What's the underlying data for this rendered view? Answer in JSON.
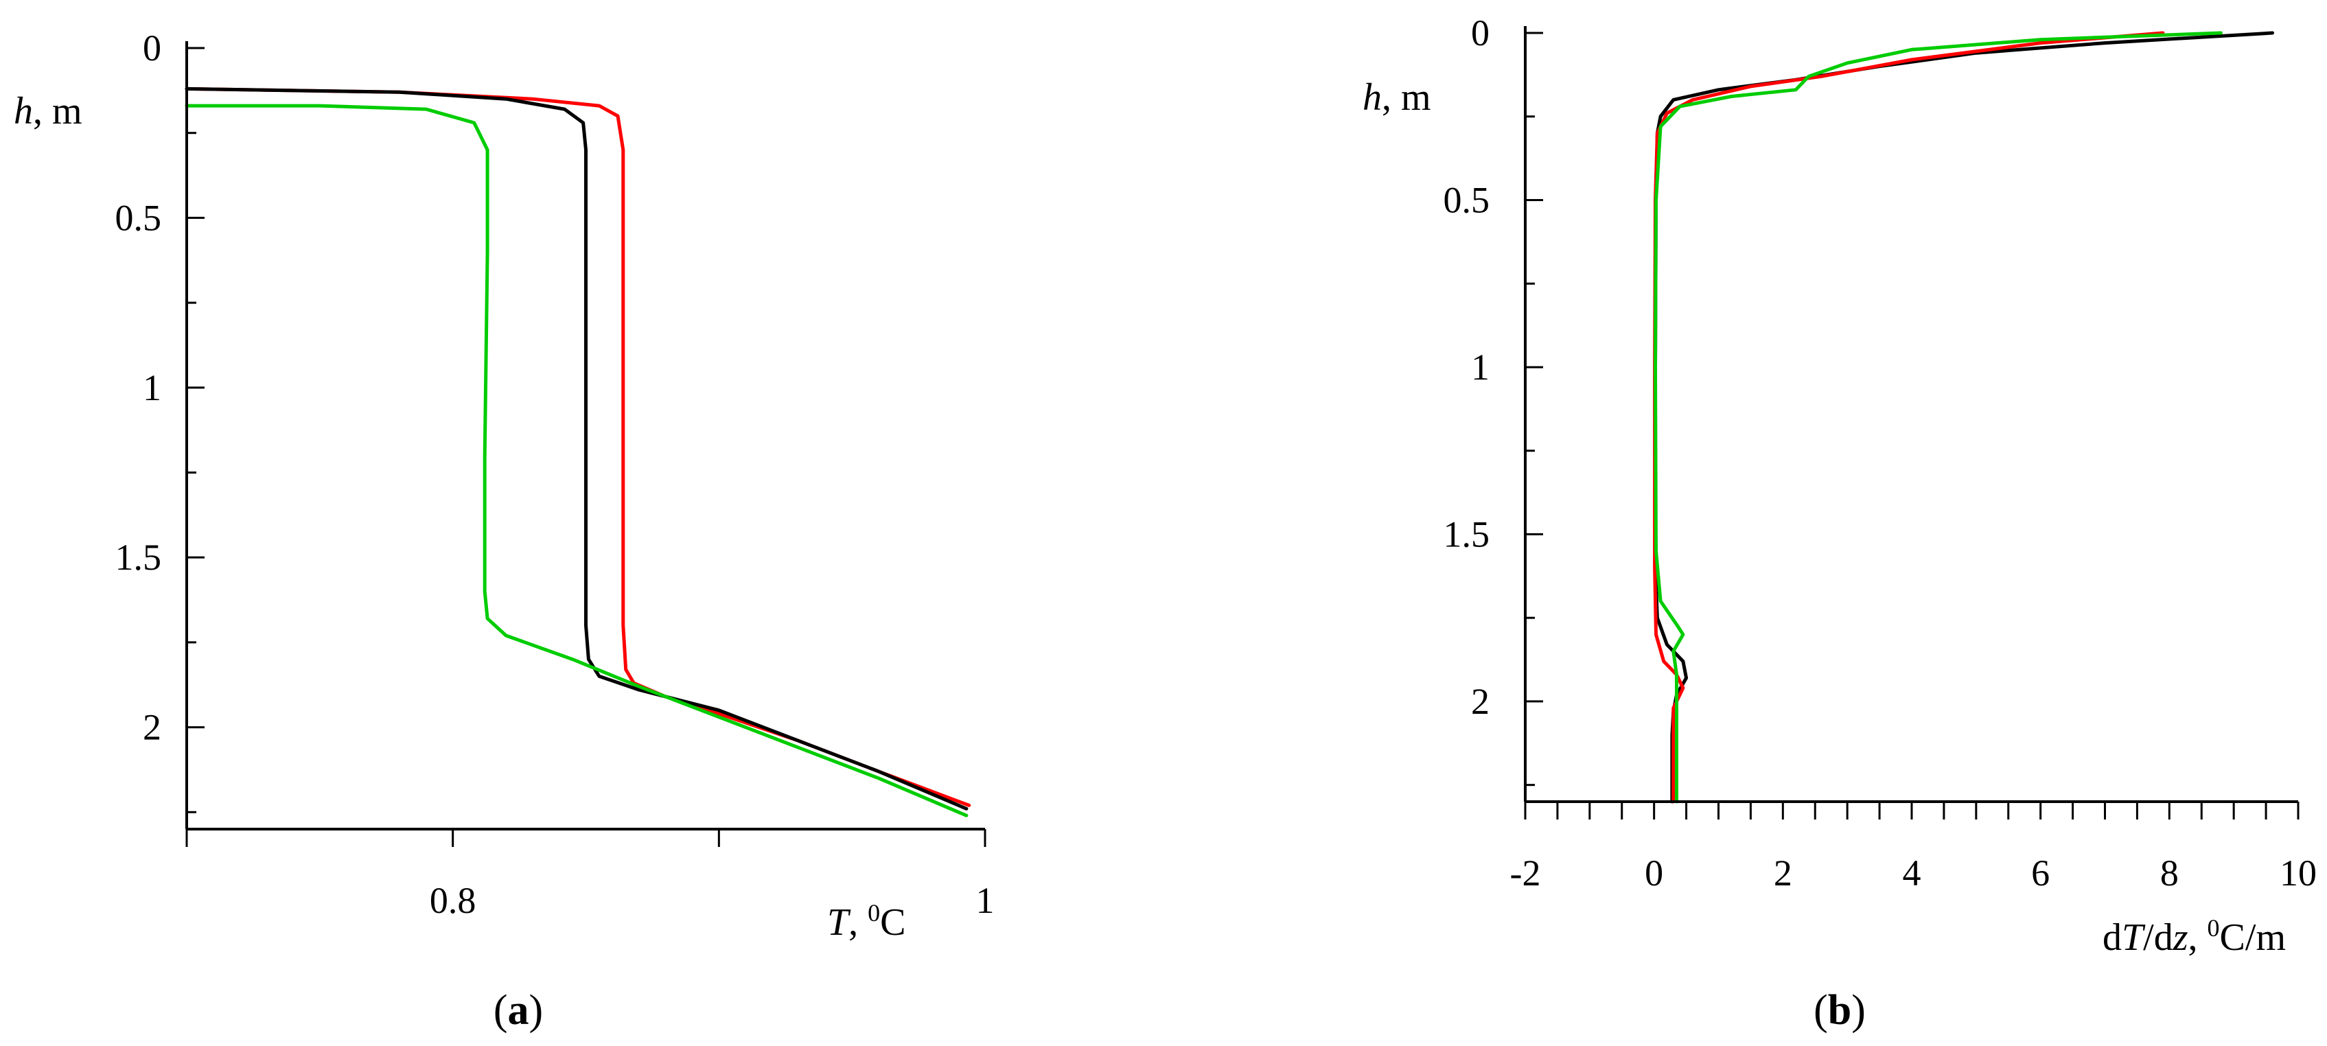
{
  "panels": [
    {
      "label_open": "(",
      "label_letter": "a",
      "label_close": ")",
      "ylabel_var": "h",
      "ylabel_unit": ", m",
      "xlabel_var": "T",
      "xlabel_sep": ", ",
      "xlabel_sup": "0",
      "xlabel_unit": "C"
    },
    {
      "label_open": "(",
      "label_letter": "b",
      "label_close": ")",
      "ylabel_var": "h",
      "ylabel_unit": ", m",
      "xlabel_pre": "d",
      "xlabel_var": "T",
      "xlabel_mid": "/d",
      "xlabel_var2": "z",
      "xlabel_sep": ", ",
      "xlabel_sup": "0",
      "xlabel_unit": "C/m"
    }
  ],
  "chart_data": [
    {
      "type": "line",
      "title": "",
      "xlabel": "T, 0C",
      "ylabel": "h, m",
      "xlim": [
        0.7,
        1.0
      ],
      "ylim": [
        2.3,
        0
      ],
      "y_inverted": true,
      "x_ticks_labeled": [
        "0.8",
        "1"
      ],
      "x_tick_values": [
        0.8,
        1.0
      ],
      "x_minor_ticks": [
        0.7,
        0.9
      ],
      "y_ticks_labeled": [
        "0",
        "0.5",
        "1",
        "1.5",
        "2"
      ],
      "y_tick_values": [
        0,
        0.5,
        1,
        1.5,
        2
      ],
      "grid": false,
      "legend": "none",
      "series": [
        {
          "color": "#ff0000",
          "points": [
            [
              0.7,
              0.12
            ],
            [
              0.78,
              0.13
            ],
            [
              0.83,
              0.15
            ],
            [
              0.855,
              0.17
            ],
            [
              0.862,
              0.2
            ],
            [
              0.864,
              0.3
            ],
            [
              0.864,
              0.6
            ],
            [
              0.864,
              1.2
            ],
            [
              0.864,
              1.7
            ],
            [
              0.865,
              1.83
            ],
            [
              0.868,
              1.87
            ],
            [
              0.88,
              1.91
            ],
            [
              0.9,
              1.96
            ],
            [
              0.93,
              2.04
            ],
            [
              0.96,
              2.13
            ],
            [
              0.994,
              2.23
            ]
          ]
        },
        {
          "color": "#000000",
          "points": [
            [
              0.7,
              0.12
            ],
            [
              0.78,
              0.13
            ],
            [
              0.82,
              0.15
            ],
            [
              0.842,
              0.18
            ],
            [
              0.849,
              0.22
            ],
            [
              0.85,
              0.3
            ],
            [
              0.85,
              0.6
            ],
            [
              0.85,
              1.2
            ],
            [
              0.85,
              1.7
            ],
            [
              0.851,
              1.8
            ],
            [
              0.855,
              1.85
            ],
            [
              0.87,
              1.89
            ],
            [
              0.9,
              1.95
            ],
            [
              0.93,
              2.04
            ],
            [
              0.96,
              2.13
            ],
            [
              0.993,
              2.24
            ]
          ]
        },
        {
          "color": "#00cc00",
          "points": [
            [
              0.7,
              0.17
            ],
            [
              0.75,
              0.17
            ],
            [
              0.79,
              0.18
            ],
            [
              0.808,
              0.22
            ],
            [
              0.813,
              0.3
            ],
            [
              0.813,
              0.6
            ],
            [
              0.812,
              1.2
            ],
            [
              0.812,
              1.6
            ],
            [
              0.813,
              1.68
            ],
            [
              0.82,
              1.73
            ],
            [
              0.845,
              1.8
            ],
            [
              0.87,
              1.88
            ],
            [
              0.9,
              1.97
            ],
            [
              0.93,
              2.06
            ],
            [
              0.96,
              2.15
            ],
            [
              0.993,
              2.26
            ]
          ]
        }
      ]
    },
    {
      "type": "line",
      "title": "",
      "xlabel": "dT/dz, 0C/m",
      "ylabel": "h, m",
      "xlim": [
        -2,
        10
      ],
      "ylim": [
        2.3,
        0
      ],
      "y_inverted": true,
      "x_ticks_labeled": [
        "-2",
        "0",
        "2",
        "4",
        "6",
        "8",
        "10"
      ],
      "x_tick_values": [
        -2,
        0,
        2,
        4,
        6,
        8,
        10
      ],
      "x_minor_ticks": [
        -1.5,
        -1,
        -0.5,
        0.5,
        1,
        1.5,
        2.5,
        3,
        3.5,
        4.5,
        5,
        5.5,
        6.5,
        7,
        7.5,
        8.5,
        9,
        9.5
      ],
      "y_ticks_labeled": [
        "0",
        "0.5",
        "1",
        "1.5",
        "2"
      ],
      "y_tick_values": [
        0,
        0.5,
        1,
        1.5,
        2
      ],
      "grid": false,
      "legend": "none",
      "series": [
        {
          "color": "#000000",
          "points": [
            [
              9.6,
              0.0
            ],
            [
              7.0,
              0.03
            ],
            [
              5.0,
              0.06
            ],
            [
              3.5,
              0.1
            ],
            [
              2.2,
              0.14
            ],
            [
              1.0,
              0.17
            ],
            [
              0.3,
              0.2
            ],
            [
              0.1,
              0.25
            ],
            [
              0.05,
              0.3
            ],
            [
              0.03,
              0.5
            ],
            [
              0.02,
              1.0
            ],
            [
              0.02,
              1.6
            ],
            [
              0.05,
              1.75
            ],
            [
              0.2,
              1.83
            ],
            [
              0.45,
              1.88
            ],
            [
              0.5,
              1.93
            ],
            [
              0.35,
              1.98
            ],
            [
              0.3,
              2.03
            ],
            [
              0.28,
              2.1
            ],
            [
              0.28,
              2.3
            ]
          ]
        },
        {
          "color": "#ff0000",
          "points": [
            [
              7.9,
              0.0
            ],
            [
              6.0,
              0.03
            ],
            [
              4.0,
              0.08
            ],
            [
              2.6,
              0.13
            ],
            [
              1.5,
              0.16
            ],
            [
              0.6,
              0.2
            ],
            [
              0.2,
              0.24
            ],
            [
              0.05,
              0.3
            ],
            [
              0.02,
              0.5
            ],
            [
              0.01,
              1.0
            ],
            [
              0.01,
              1.6
            ],
            [
              0.03,
              1.8
            ],
            [
              0.15,
              1.88
            ],
            [
              0.35,
              1.92
            ],
            [
              0.45,
              1.96
            ],
            [
              0.3,
              2.02
            ],
            [
              0.3,
              2.1
            ],
            [
              0.3,
              2.3
            ]
          ]
        },
        {
          "color": "#00cc00",
          "points": [
            [
              8.8,
              0.0
            ],
            [
              6.0,
              0.02
            ],
            [
              4.0,
              0.05
            ],
            [
              3.0,
              0.09
            ],
            [
              2.4,
              0.13
            ],
            [
              2.2,
              0.17
            ],
            [
              1.2,
              0.19
            ],
            [
              0.4,
              0.22
            ],
            [
              0.1,
              0.28
            ],
            [
              0.03,
              0.5
            ],
            [
              0.02,
              1.0
            ],
            [
              0.03,
              1.55
            ],
            [
              0.1,
              1.7
            ],
            [
              0.35,
              1.77
            ],
            [
              0.45,
              1.8
            ],
            [
              0.3,
              1.85
            ],
            [
              0.35,
              1.92
            ],
            [
              0.35,
              2.0
            ],
            [
              0.35,
              2.3
            ]
          ]
        }
      ]
    }
  ]
}
